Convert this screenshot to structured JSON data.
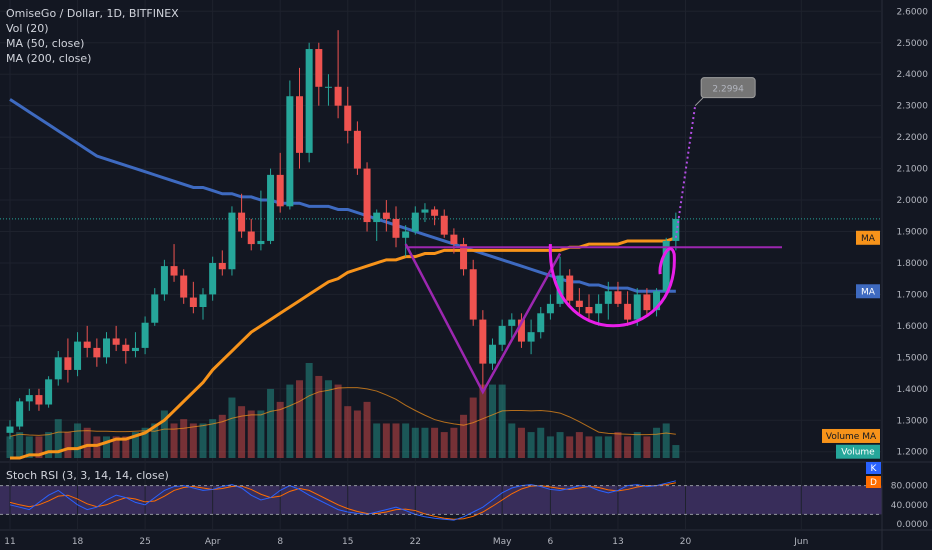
{
  "header": {
    "title": "OmiseGo / Dollar, 1D, BITFINEX",
    "studies": [
      "Vol (20)",
      "MA (50, close)",
      "MA (200, close)"
    ]
  },
  "rsi_panel": {
    "label": "Stoch RSI (3, 3, 14, 14, close)",
    "ticks": [
      "80.0000",
      "40.0000",
      "0.0000"
    ],
    "k_tag": "K",
    "d_tag": "D"
  },
  "price_tags": {
    "ma50": "MA",
    "ma200": "MA",
    "volume_ma": "Volume MA",
    "volume": "Volume"
  },
  "target": "2.2994",
  "colors": {
    "bg": "#131722",
    "up": "#26a69a",
    "down": "#ef5350",
    "ma50": "#f7931a",
    "ma200": "#3e6ac0",
    "drawing": "#9c27b0",
    "cup": "#e91ee9",
    "rsi_k": "#2962ff",
    "rsi_d": "#ff6d00"
  },
  "chart_data": {
    "type": "candlestick",
    "price_axis": [
      "2.6000",
      "2.5000",
      "2.4000",
      "2.3000",
      "2.2000",
      "2.1000",
      "2.0000",
      "1.9000",
      "1.8000",
      "1.7000",
      "1.6000",
      "1.5000",
      "1.4000",
      "1.3000",
      "1.2000"
    ],
    "date_ticks": [
      {
        "label": "11",
        "i": 0
      },
      {
        "label": "18",
        "i": 7
      },
      {
        "label": "25",
        "i": 14
      },
      {
        "label": "Apr",
        "i": 21
      },
      {
        "label": "8",
        "i": 28
      },
      {
        "label": "15",
        "i": 35
      },
      {
        "label": "22",
        "i": 42
      },
      {
        "label": "May",
        "i": 51
      },
      {
        "label": "6",
        "i": 56
      },
      {
        "label": "13",
        "i": 63
      },
      {
        "label": "20",
        "i": 70
      },
      {
        "label": "Jun",
        "i": 82
      }
    ],
    "ylim": [
      1.18,
      2.62
    ],
    "last_price": 1.94,
    "ohlc": [
      [
        1.26,
        1.3,
        1.24,
        1.28
      ],
      [
        1.28,
        1.37,
        1.27,
        1.36
      ],
      [
        1.36,
        1.4,
        1.33,
        1.38
      ],
      [
        1.38,
        1.4,
        1.33,
        1.35
      ],
      [
        1.35,
        1.44,
        1.34,
        1.43
      ],
      [
        1.43,
        1.52,
        1.41,
        1.5
      ],
      [
        1.5,
        1.56,
        1.42,
        1.46
      ],
      [
        1.46,
        1.58,
        1.44,
        1.55
      ],
      [
        1.55,
        1.6,
        1.5,
        1.53
      ],
      [
        1.53,
        1.56,
        1.47,
        1.5
      ],
      [
        1.5,
        1.58,
        1.48,
        1.56
      ],
      [
        1.56,
        1.6,
        1.52,
        1.54
      ],
      [
        1.54,
        1.56,
        1.48,
        1.52
      ],
      [
        1.52,
        1.58,
        1.5,
        1.53
      ],
      [
        1.53,
        1.63,
        1.51,
        1.61
      ],
      [
        1.61,
        1.72,
        1.6,
        1.7
      ],
      [
        1.7,
        1.81,
        1.68,
        1.79
      ],
      [
        1.79,
        1.86,
        1.74,
        1.76
      ],
      [
        1.76,
        1.78,
        1.67,
        1.69
      ],
      [
        1.69,
        1.74,
        1.64,
        1.66
      ],
      [
        1.66,
        1.72,
        1.62,
        1.7
      ],
      [
        1.7,
        1.82,
        1.68,
        1.8
      ],
      [
        1.8,
        1.84,
        1.76,
        1.78
      ],
      [
        1.78,
        1.98,
        1.76,
        1.96
      ],
      [
        1.96,
        2.02,
        1.88,
        1.9
      ],
      [
        1.9,
        1.94,
        1.84,
        1.86
      ],
      [
        1.86,
        2.03,
        1.84,
        1.87
      ],
      [
        1.87,
        2.1,
        1.86,
        2.08
      ],
      [
        2.08,
        2.15,
        1.96,
        1.98
      ],
      [
        1.98,
        2.38,
        1.97,
        2.33
      ],
      [
        2.33,
        2.42,
        2.1,
        2.15
      ],
      [
        2.15,
        2.5,
        2.12,
        2.48
      ],
      [
        2.48,
        2.5,
        2.3,
        2.36
      ],
      [
        2.36,
        2.4,
        2.3,
        2.36
      ],
      [
        2.36,
        2.54,
        2.26,
        2.3
      ],
      [
        2.3,
        2.36,
        2.18,
        2.22
      ],
      [
        2.22,
        2.25,
        2.08,
        2.1
      ],
      [
        2.1,
        2.12,
        1.9,
        1.93
      ],
      [
        1.93,
        1.97,
        1.87,
        1.96
      ],
      [
        1.96,
        2.0,
        1.9,
        1.94
      ],
      [
        1.94,
        1.98,
        1.85,
        1.88
      ],
      [
        1.88,
        1.92,
        1.82,
        1.9
      ],
      [
        1.9,
        1.98,
        1.89,
        1.96
      ],
      [
        1.96,
        1.99,
        1.93,
        1.97
      ],
      [
        1.97,
        1.98,
        1.92,
        1.95
      ],
      [
        1.95,
        1.97,
        1.88,
        1.89
      ],
      [
        1.89,
        1.91,
        1.83,
        1.86
      ],
      [
        1.86,
        1.88,
        1.76,
        1.78
      ],
      [
        1.78,
        1.81,
        1.6,
        1.62
      ],
      [
        1.62,
        1.65,
        1.4,
        1.48
      ],
      [
        1.48,
        1.56,
        1.46,
        1.54
      ],
      [
        1.54,
        1.62,
        1.52,
        1.6
      ],
      [
        1.6,
        1.64,
        1.56,
        1.62
      ],
      [
        1.62,
        1.64,
        1.53,
        1.55
      ],
      [
        1.55,
        1.62,
        1.51,
        1.58
      ],
      [
        1.58,
        1.66,
        1.56,
        1.64
      ],
      [
        1.64,
        1.7,
        1.62,
        1.67
      ],
      [
        1.67,
        1.82,
        1.66,
        1.76
      ],
      [
        1.76,
        1.78,
        1.66,
        1.68
      ],
      [
        1.68,
        1.72,
        1.64,
        1.66
      ],
      [
        1.66,
        1.7,
        1.62,
        1.64
      ],
      [
        1.64,
        1.7,
        1.6,
        1.67
      ],
      [
        1.67,
        1.74,
        1.62,
        1.71
      ],
      [
        1.71,
        1.74,
        1.66,
        1.67
      ],
      [
        1.67,
        1.71,
        1.6,
        1.62
      ],
      [
        1.62,
        1.72,
        1.6,
        1.7
      ],
      [
        1.7,
        1.72,
        1.63,
        1.65
      ],
      [
        1.65,
        1.72,
        1.63,
        1.71
      ],
      [
        1.71,
        1.88,
        1.7,
        1.87
      ],
      [
        1.87,
        1.96,
        1.84,
        1.94
      ]
    ],
    "volume": [
      0.05,
      0.06,
      0.05,
      0.05,
      0.06,
      0.09,
      0.06,
      0.08,
      0.07,
      0.05,
      0.05,
      0.05,
      0.05,
      0.06,
      0.07,
      0.08,
      0.11,
      0.08,
      0.09,
      0.08,
      0.08,
      0.09,
      0.1,
      0.14,
      0.12,
      0.11,
      0.11,
      0.16,
      0.13,
      0.17,
      0.18,
      0.22,
      0.19,
      0.18,
      0.17,
      0.12,
      0.11,
      0.13,
      0.08,
      0.08,
      0.08,
      0.08,
      0.07,
      0.07,
      0.07,
      0.06,
      0.07,
      0.1,
      0.14,
      0.17,
      0.17,
      0.17,
      0.08,
      0.07,
      0.06,
      0.07,
      0.05,
      0.06,
      0.05,
      0.06,
      0.05,
      0.05,
      0.05,
      0.06,
      0.05,
      0.06,
      0.05,
      0.07,
      0.08,
      0.03
    ],
    "ma50": [
      1.18,
      1.18,
      1.19,
      1.19,
      1.2,
      1.2,
      1.21,
      1.21,
      1.22,
      1.22,
      1.23,
      1.24,
      1.24,
      1.25,
      1.26,
      1.28,
      1.3,
      1.33,
      1.36,
      1.39,
      1.42,
      1.46,
      1.49,
      1.52,
      1.55,
      1.58,
      1.6,
      1.62,
      1.64,
      1.66,
      1.68,
      1.7,
      1.72,
      1.74,
      1.75,
      1.77,
      1.78,
      1.79,
      1.8,
      1.81,
      1.81,
      1.82,
      1.82,
      1.83,
      1.83,
      1.84,
      1.84,
      1.84,
      1.84,
      1.84,
      1.84,
      1.84,
      1.84,
      1.84,
      1.84,
      1.84,
      1.84,
      1.84,
      1.85,
      1.85,
      1.86,
      1.86,
      1.86,
      1.86,
      1.87,
      1.87,
      1.87,
      1.87,
      1.87,
      1.88
    ],
    "ma200": [
      2.32,
      2.3,
      2.28,
      2.26,
      2.24,
      2.22,
      2.2,
      2.18,
      2.16,
      2.14,
      2.13,
      2.12,
      2.11,
      2.1,
      2.09,
      2.08,
      2.07,
      2.06,
      2.05,
      2.04,
      2.04,
      2.03,
      2.02,
      2.02,
      2.01,
      2.01,
      2.0,
      2.0,
      1.99,
      1.99,
      1.99,
      1.98,
      1.98,
      1.98,
      1.97,
      1.97,
      1.96,
      1.95,
      1.94,
      1.93,
      1.92,
      1.91,
      1.9,
      1.89,
      1.88,
      1.87,
      1.86,
      1.85,
      1.84,
      1.83,
      1.82,
      1.81,
      1.8,
      1.79,
      1.78,
      1.77,
      1.76,
      1.75,
      1.74,
      1.74,
      1.73,
      1.73,
      1.72,
      1.72,
      1.72,
      1.71,
      1.71,
      1.71,
      1.71,
      1.71
    ],
    "stoch_k": [
      40,
      35,
      30,
      45,
      60,
      70,
      55,
      40,
      30,
      35,
      50,
      60,
      55,
      45,
      40,
      55,
      70,
      78,
      80,
      75,
      70,
      72,
      78,
      82,
      75,
      60,
      50,
      55,
      70,
      80,
      72,
      60,
      50,
      40,
      30,
      25,
      22,
      20,
      25,
      30,
      35,
      28,
      20,
      15,
      12,
      10,
      8,
      15,
      25,
      35,
      50,
      65,
      75,
      80,
      82,
      78,
      72,
      70,
      74,
      80,
      78,
      70,
      65,
      70,
      80,
      82,
      78,
      80,
      85,
      90
    ],
    "stoch_d": [
      45,
      40,
      36,
      40,
      48,
      58,
      60,
      52,
      42,
      36,
      40,
      48,
      55,
      52,
      46,
      48,
      58,
      70,
      76,
      78,
      75,
      72,
      74,
      78,
      79,
      72,
      62,
      55,
      58,
      68,
      74,
      70,
      60,
      50,
      40,
      32,
      26,
      22,
      22,
      25,
      30,
      31,
      28,
      21,
      16,
      12,
      10,
      11,
      16,
      25,
      37,
      50,
      63,
      73,
      79,
      80,
      77,
      74,
      72,
      75,
      78,
      76,
      71,
      69,
      72,
      77,
      80,
      80,
      82,
      86
    ],
    "annotations": {
      "neckline": {
        "price": 1.85,
        "from_i": 41,
        "to_i": 80
      },
      "left_leg": [
        {
          "i": 41,
          "p": 1.86
        },
        {
          "i": 49,
          "p": 1.39
        },
        {
          "i": 57,
          "p": 1.83
        }
      ],
      "cup": {
        "from_i": 56,
        "to_i": 68,
        "top": 1.86,
        "bottom": 1.57
      },
      "projection": {
        "from": {
          "i": 69,
          "p": 1.88
        },
        "to": {
          "i": 71,
          "p": 2.3
        }
      }
    }
  }
}
